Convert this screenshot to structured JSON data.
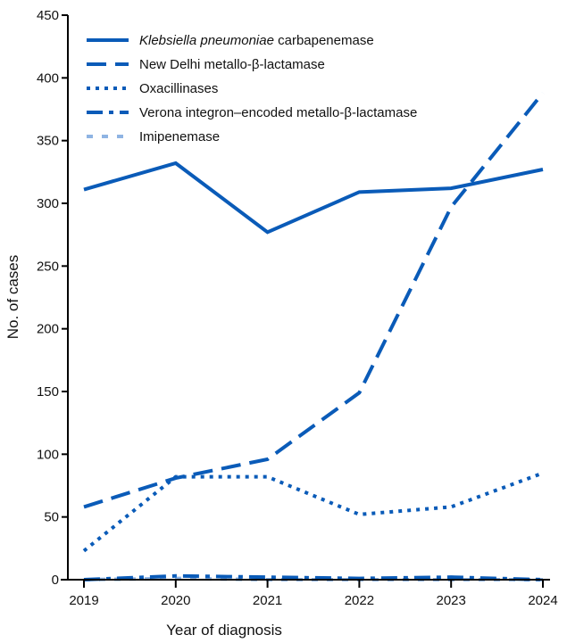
{
  "chart_data": {
    "type": "line",
    "xlabel": "Year of diagnosis",
    "ylabel": "No. of cases",
    "x": [
      2019,
      2020,
      2021,
      2022,
      2023,
      2024
    ],
    "ylim": [
      0,
      450
    ],
    "yticks": [
      0,
      50,
      100,
      150,
      200,
      250,
      300,
      350,
      400,
      450
    ],
    "grid": false,
    "legend_position": "top-left",
    "series": [
      {
        "name": "Klebsiella pneumoniae carbapenemase",
        "name_italic": "Klebsiella pneumoniae",
        "name_rest": " carbapenemase",
        "values": [
          311,
          332,
          277,
          309,
          312,
          327
        ],
        "color": "#0a5bb8",
        "dash": "solid"
      },
      {
        "name": "New Delhi metallo-β-lactamase",
        "values": [
          58,
          81,
          96,
          149,
          297,
          388
        ],
        "color": "#0a5bb8",
        "dash": "long-dash"
      },
      {
        "name": "Oxacillinases",
        "values": [
          23,
          82,
          82,
          52,
          58,
          85
        ],
        "color": "#0a5bb8",
        "dash": "dot"
      },
      {
        "name": "Verona integron–encoded metallo-β-lactamase",
        "values": [
          0,
          3,
          2,
          1,
          2,
          0
        ],
        "color": "#0a5bb8",
        "dash": "dash-dot"
      },
      {
        "name": "Imipenemase",
        "values": [
          0,
          1,
          0,
          0,
          0,
          0
        ],
        "color": "#8fb4e3",
        "dash": "short-dash"
      }
    ]
  }
}
